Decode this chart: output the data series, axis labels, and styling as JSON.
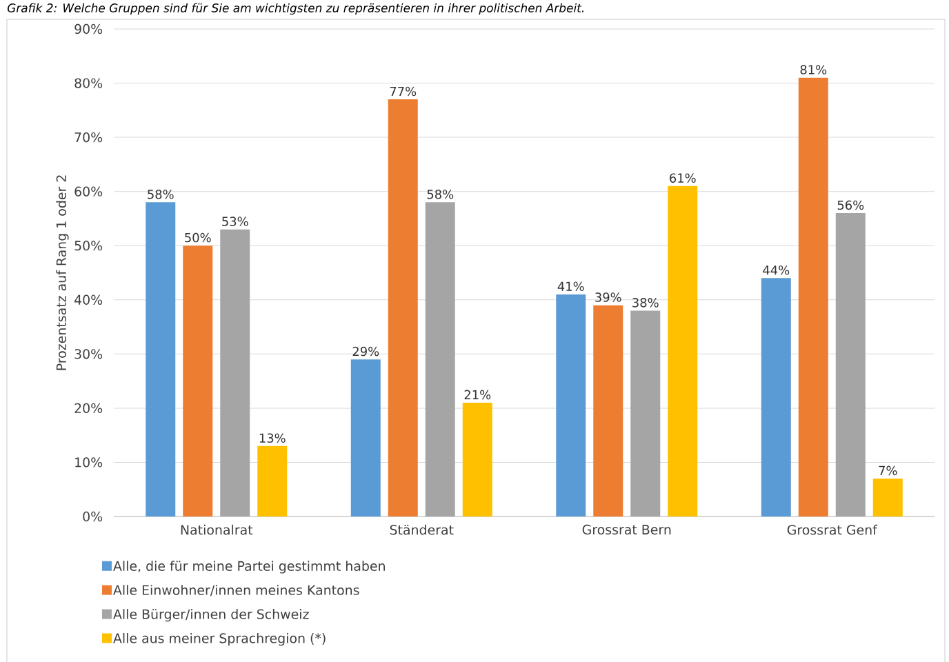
{
  "chart_data": {
    "type": "bar",
    "title": "Grafik 2: Welche Gruppen sind für Sie am wichtigsten zu repräsentieren in ihrer politischen Arbeit.",
    "ylabel": "Prozentsatz auf Rang 1 oder 2",
    "categories": [
      "Nationalrat",
      "Ständerat",
      "Grossrat Bern",
      "Grossrat Genf"
    ],
    "series": [
      {
        "name": "Alle, die für meine Partei gestimmt haben",
        "color": "#5b9bd5",
        "values": [
          58,
          29,
          41,
          44
        ],
        "value_labels": [
          "58%",
          "29%",
          "41%",
          "44%"
        ]
      },
      {
        "name": "Alle Einwohner/innen meines Kantons",
        "color": "#ed7d31",
        "values": [
          50,
          77,
          39,
          81
        ],
        "value_labels": [
          "50%",
          "77%",
          "39%",
          "81%"
        ]
      },
      {
        "name": "Alle Bürger/innen der Schweiz",
        "color": "#a5a5a5",
        "values": [
          53,
          58,
          38,
          56
        ],
        "value_labels": [
          "53%",
          "58%",
          "38%",
          "56%"
        ]
      },
      {
        "name": "Alle aus meiner Sprachregion (*)",
        "color": "#ffc000",
        "values": [
          13,
          21,
          61,
          7
        ],
        "value_labels": [
          "13%",
          "21%",
          "61%",
          "7%"
        ]
      }
    ],
    "ylim": [
      0,
      90
    ],
    "yticks": [
      {
        "value": 0,
        "label": "0%"
      },
      {
        "value": 10,
        "label": "10%"
      },
      {
        "value": 20,
        "label": "20%"
      },
      {
        "value": 30,
        "label": "30%"
      },
      {
        "value": 40,
        "label": "40%"
      },
      {
        "value": 50,
        "label": "50%"
      },
      {
        "value": 60,
        "label": "60%"
      },
      {
        "value": 70,
        "label": "70%"
      },
      {
        "value": 80,
        "label": "80%"
      },
      {
        "value": 90,
        "label": "90%"
      }
    ],
    "grid": "y",
    "legend": "bottom"
  }
}
